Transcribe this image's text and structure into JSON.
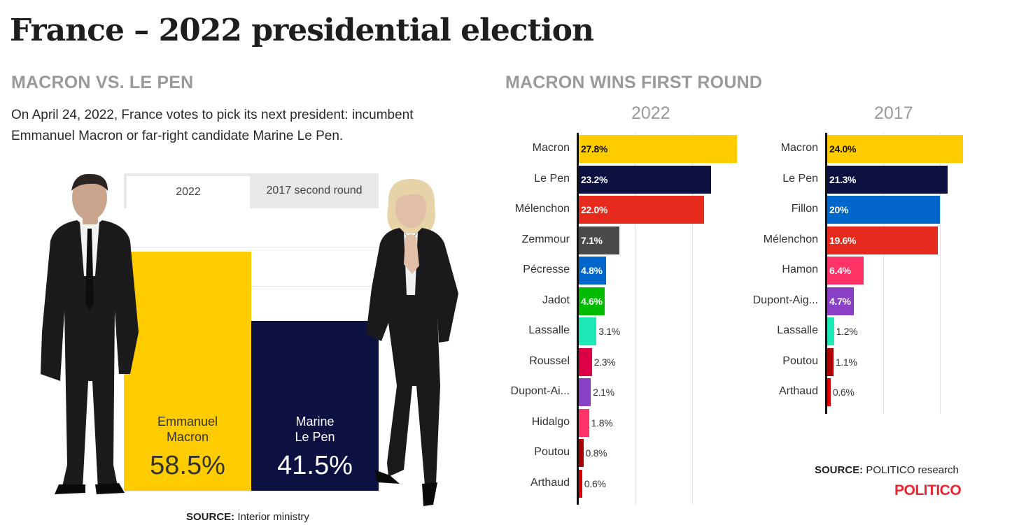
{
  "page": {
    "title": "France – 2022 presidential election"
  },
  "runoff": {
    "heading": "MACRON VS. LE PEN",
    "intro": "On April 24, 2022, France votes to pick its next president: incumbent Emmanuel Macron or far-right candidate Marine Le Pen.",
    "tabs": [
      "2022",
      "2017 second round"
    ],
    "active_tab": "2022",
    "source_label": "SOURCE:",
    "source_text": "Interior ministry"
  },
  "first_round": {
    "heading": "MACRON WINS FIRST ROUND",
    "source_label": "SOURCE:",
    "source_text": "POLITICO research",
    "brand": "POLITICO"
  },
  "chart_data": [
    {
      "type": "bar",
      "orientation": "vertical",
      "title": "",
      "categories": [
        "Emmanuel\nMacron",
        "Marine\nLe Pen"
      ],
      "values": [
        58.5,
        41.5
      ],
      "labels": [
        "58.5%",
        "41.5%"
      ],
      "colors": [
        "#ffcc00",
        "#0c1142"
      ],
      "text_colors": [
        "#333333",
        "#ffffff"
      ],
      "ylim": [
        0,
        60
      ],
      "grid": true
    },
    {
      "type": "bar",
      "orientation": "horizontal",
      "title": "2022",
      "categories": [
        "Macron",
        "Le Pen",
        "Mélenchon",
        "Zemmour",
        "Pécresse",
        "Jadot",
        "Lassalle",
        "Roussel",
        "Dupont-Ai...",
        "Hidalgo",
        "Poutou",
        "Arthaud"
      ],
      "values": [
        27.8,
        23.2,
        22.0,
        7.1,
        4.8,
        4.6,
        3.1,
        2.3,
        2.1,
        1.8,
        0.8,
        0.6
      ],
      "labels": [
        "27.8%",
        "23.2%",
        "22.0%",
        "7.1%",
        "4.8%",
        "4.6%",
        "3.1%",
        "2.3%",
        "2.1%",
        "1.8%",
        "0.8%",
        "0.6%"
      ],
      "colors": [
        "#ffcc00",
        "#0c1142",
        "#e62b1e",
        "#4a4a4a",
        "#0066cc",
        "#00bb00",
        "#1de9b6",
        "#dd0044",
        "#8a3fc7",
        "#ff3366",
        "#aa0000",
        "#dd0000"
      ],
      "xlim": [
        0,
        28
      ],
      "grid": true
    },
    {
      "type": "bar",
      "orientation": "horizontal",
      "title": "2017",
      "categories": [
        "Macron",
        "Le Pen",
        "Fillon",
        "Mélenchon",
        "Hamon",
        "Dupont-Aig...",
        "Lassalle",
        "Poutou",
        "Arthaud"
      ],
      "values": [
        24.0,
        21.3,
        20,
        19.6,
        6.4,
        4.7,
        1.2,
        1.1,
        0.6
      ],
      "labels": [
        "24.0%",
        "21.3%",
        "20%",
        "19.6%",
        "6.4%",
        "4.7%",
        "1.2%",
        "1.1%",
        "0.6%"
      ],
      "colors": [
        "#ffcc00",
        "#0c1142",
        "#0066cc",
        "#e62b1e",
        "#ff3366",
        "#8a3fc7",
        "#1de9b6",
        "#aa0000",
        "#dd0000"
      ],
      "xlim": [
        0,
        24.3
      ],
      "grid": true
    }
  ]
}
